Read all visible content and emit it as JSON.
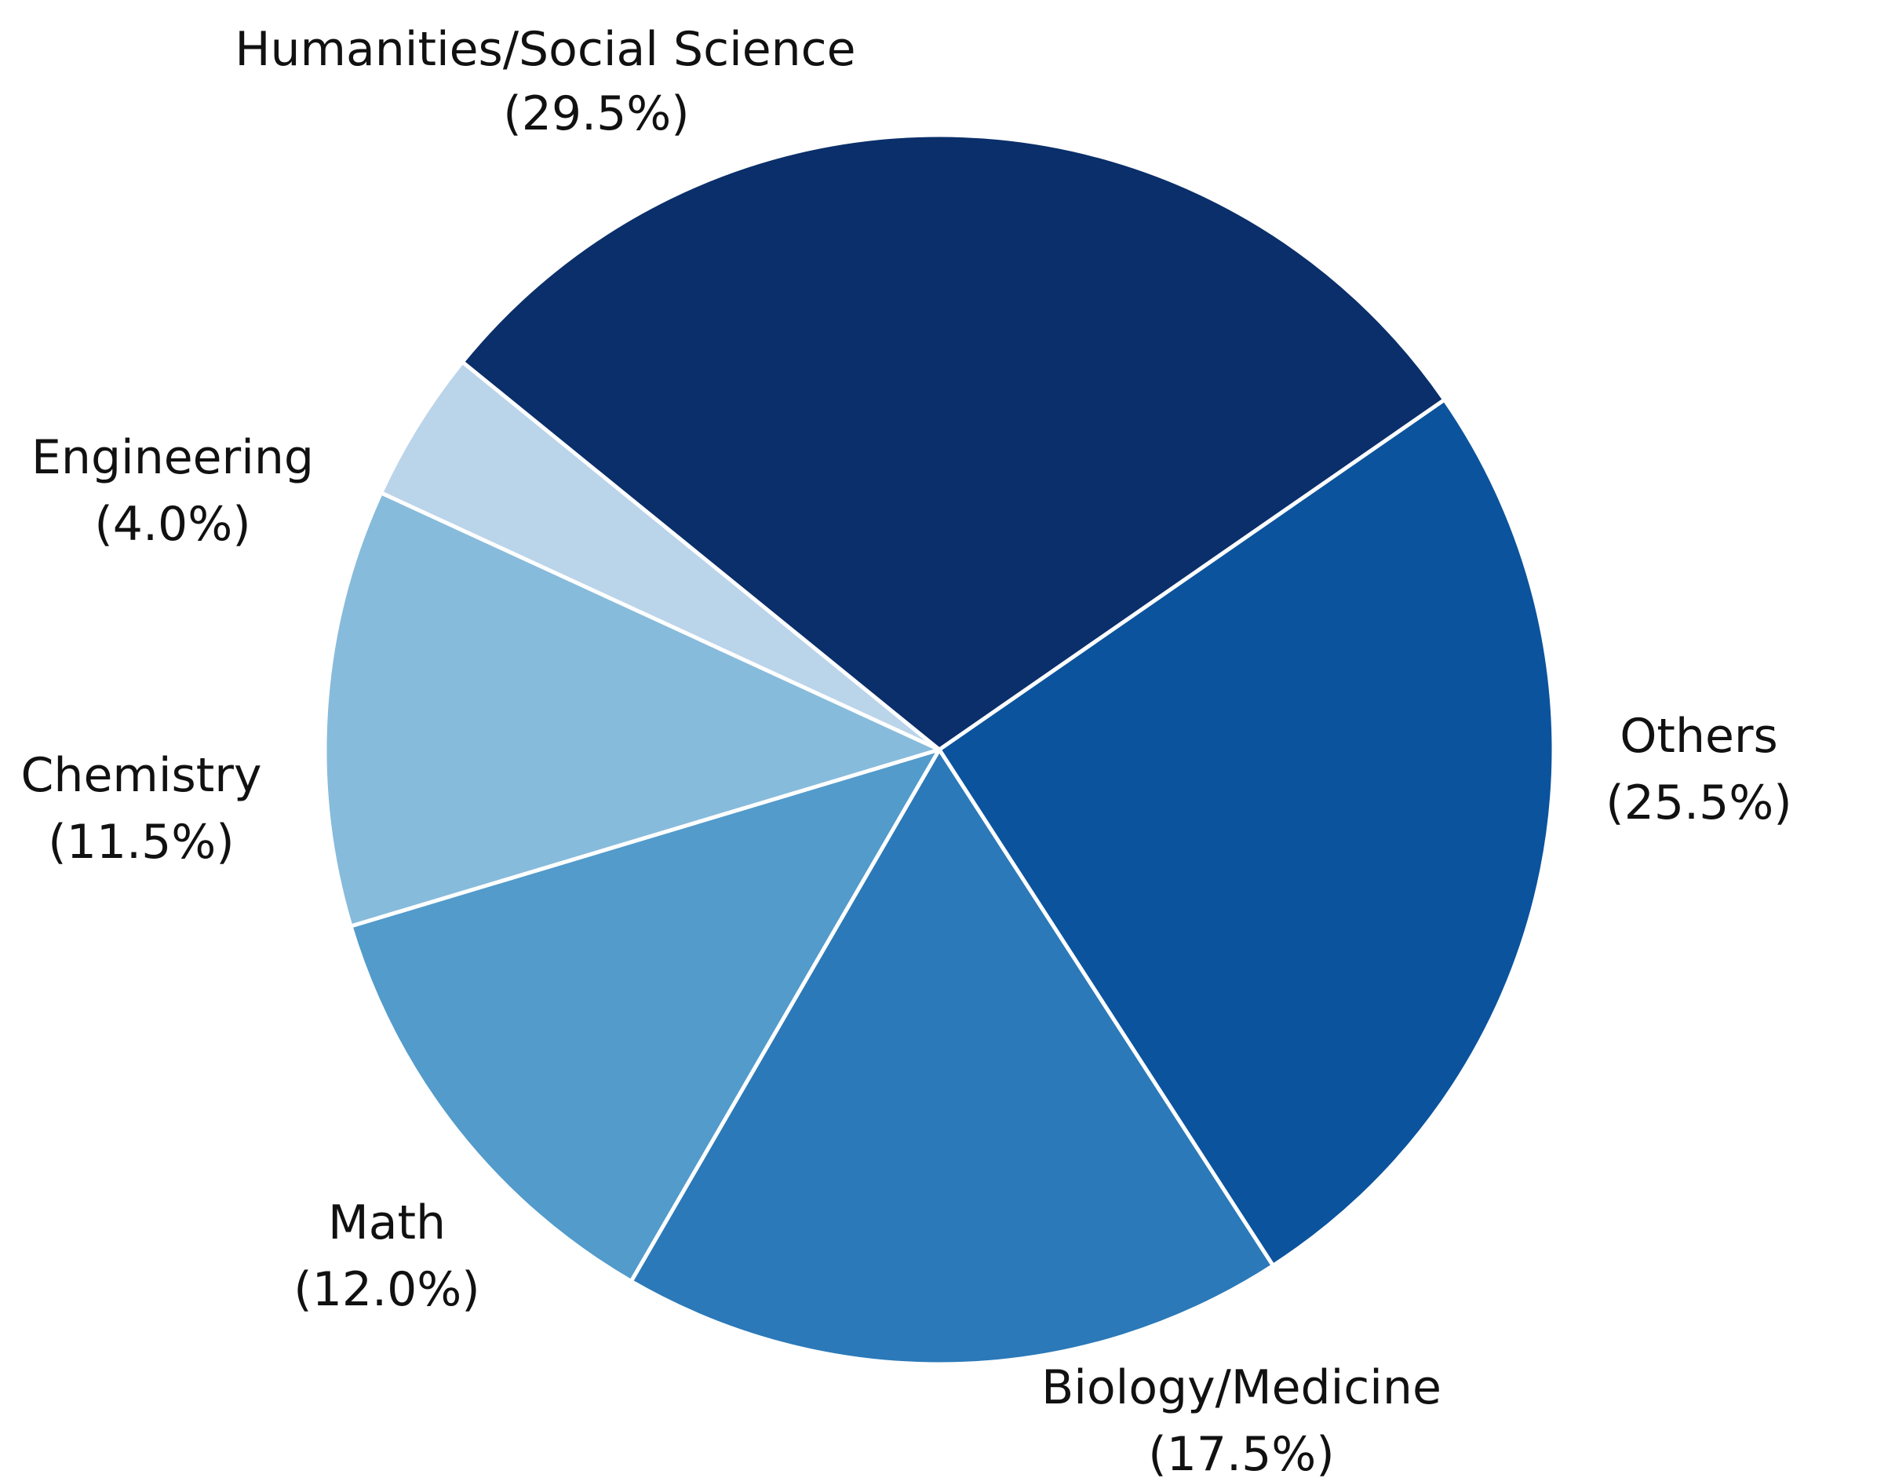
{
  "chart_data": {
    "type": "pie",
    "title": "",
    "unit": "%",
    "start_angle_deg": 55.3,
    "direction": "clockwise",
    "slices": [
      {
        "label": "Others",
        "value": 25.5,
        "display": "(25.5%)",
        "color": "#0b539d"
      },
      {
        "label": "Biology/Medicine",
        "value": 17.5,
        "display": "(17.5%)",
        "color": "#2b79b8"
      },
      {
        "label": "Math",
        "value": 12.0,
        "display": "(12.0%)",
        "color": "#529bcb"
      },
      {
        "label": "Chemistry",
        "value": 11.5,
        "display": "(11.5%)",
        "color": "#87bbdb"
      },
      {
        "label": "Engineering",
        "value": 4.0,
        "display": "(4.0%)",
        "color": "#bad4ea"
      },
      {
        "label": "Humanities/Social Science",
        "value": 29.5,
        "display": "(29.5%)",
        "color": "#0a2f6a"
      }
    ]
  }
}
